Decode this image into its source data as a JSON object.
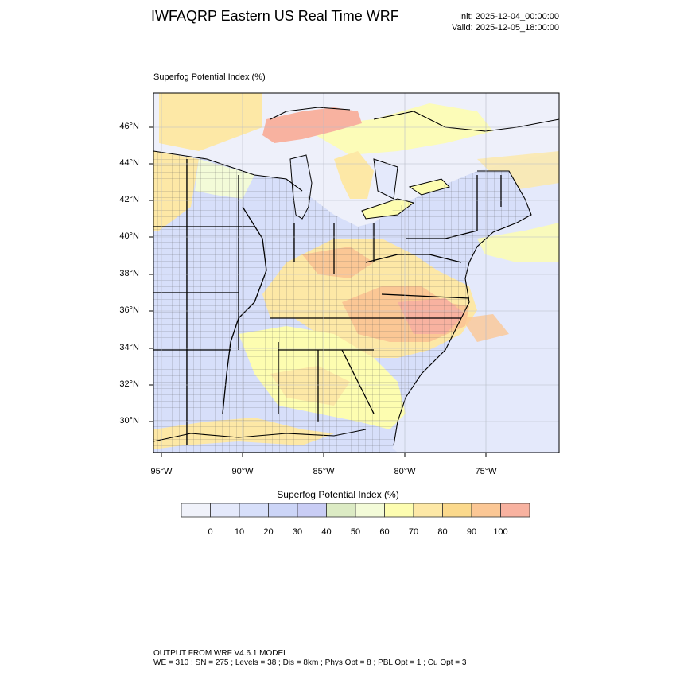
{
  "header": {
    "title": "IWFAQRP Eastern US Real Time WRF",
    "init": "Init: 2025-12-04_00:00:00",
    "valid": "Valid: 2025-12-05_18:00:00"
  },
  "map": {
    "subtitle": "Superfog Potential Index   (%)",
    "lat_labels": [
      "46°N",
      "44°N",
      "42°N",
      "40°N",
      "38°N",
      "36°N",
      "34°N",
      "32°N",
      "30°N"
    ],
    "lon_labels": [
      "95°W",
      "90°W",
      "85°W",
      "80°W",
      "75°W"
    ]
  },
  "colorbar": {
    "title": "Superfog Potential Index  (%)",
    "labels": [
      "0",
      "10",
      "20",
      "30",
      "40",
      "50",
      "60",
      "70",
      "80",
      "90",
      "100"
    ],
    "colors": [
      "#f0f2fa",
      "#e4e9fb",
      "#d7dffa",
      "#ccd5f7",
      "#c9cdf5",
      "#dcebc4",
      "#f3fbd8",
      "#fdfdb0",
      "#fde8a6",
      "#fbd98c",
      "#fbc795",
      "#f8b2a0"
    ]
  },
  "footer": {
    "line1": "OUTPUT FROM WRF V4.6.1 MODEL",
    "line2": "WE = 310 ; SN = 275 ; Levels = 38 ; Dis = 8km ; Phys Opt = 8 ; PBL Opt = 1 ; Cu Opt = 3"
  }
}
